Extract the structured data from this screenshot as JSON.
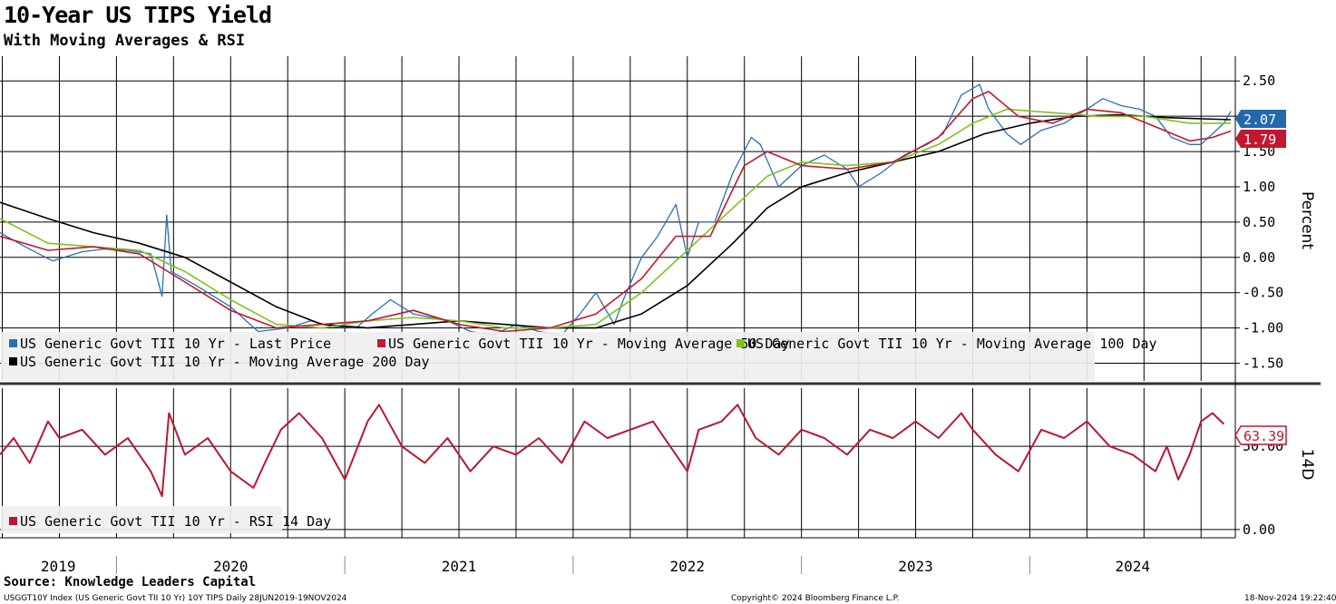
{
  "header": {
    "title": "10-Year US TIPS Yield",
    "subtitle": "With Moving Averages & RSI"
  },
  "footer": {
    "source": "Source: Knowledge Leaders Capital",
    "ticker_info": "USGGT10Y Index (US Generic Govt TII 10 Yr) 10Y TIPS  Daily 28JUN2019-19NOV2024",
    "copyright": "Copyright© 2024 Bloomberg Finance L.P.",
    "timestamp": "18-Nov-2024 19:22:40"
  },
  "colors": {
    "last_price": "#2c6fb4",
    "ma50": "#c0192f",
    "ma100": "#7ec31f",
    "ma200": "#000000",
    "rsi": "#b81830",
    "badge_blue": "#2468b0",
    "badge_red": "#c0192f"
  },
  "chart_data": [
    {
      "type": "line",
      "title": "10-Year US TIPS Yield",
      "subtitle": "With Moving Averages & RSI",
      "ylabel": "Percent",
      "ylim": [
        -1.75,
        2.85
      ],
      "yticks": [
        "2.50",
        "2.00",
        "1.50",
        "1.00",
        "0.50",
        "0.00",
        "-0.50",
        "-1.00",
        "-1.50"
      ],
      "x_tick_labels": [
        "2019",
        "2020",
        "2021",
        "2022",
        "2023",
        "2024"
      ],
      "grid": true,
      "legend_position": "bottom-left",
      "series": [
        {
          "name": "US Generic Govt TII 10 Yr - Last Price",
          "color": "#2c6fb4",
          "last_value_label": "2.07",
          "points": [
            [
              2019.49,
              0.35
            ],
            [
              2019.6,
              0.15
            ],
            [
              2019.72,
              -0.05
            ],
            [
              2019.85,
              0.08
            ],
            [
              2019.95,
              0.12
            ],
            [
              2020.05,
              0.1
            ],
            [
              2020.15,
              0.05
            ],
            [
              2020.2,
              -0.55
            ],
            [
              2020.22,
              0.6
            ],
            [
              2020.24,
              -0.2
            ],
            [
              2020.35,
              -0.4
            ],
            [
              2020.5,
              -0.7
            ],
            [
              2020.62,
              -1.05
            ],
            [
              2020.75,
              -1.0
            ],
            [
              2020.85,
              -0.9
            ],
            [
              2020.95,
              -0.98
            ],
            [
              2021.05,
              -1.0
            ],
            [
              2021.12,
              -0.8
            ],
            [
              2021.2,
              -0.6
            ],
            [
              2021.3,
              -0.8
            ],
            [
              2021.45,
              -0.9
            ],
            [
              2021.55,
              -1.05
            ],
            [
              2021.65,
              -1.1
            ],
            [
              2021.75,
              -0.95
            ],
            [
              2021.85,
              -1.05
            ],
            [
              2021.95,
              -1.1
            ],
            [
              2022.03,
              -0.8
            ],
            [
              2022.1,
              -0.5
            ],
            [
              2022.18,
              -0.95
            ],
            [
              2022.22,
              -0.6
            ],
            [
              2022.3,
              0.0
            ],
            [
              2022.37,
              0.3
            ],
            [
              2022.45,
              0.75
            ],
            [
              2022.5,
              0.0
            ],
            [
              2022.55,
              0.5
            ],
            [
              2022.62,
              0.5
            ],
            [
              2022.7,
              1.2
            ],
            [
              2022.78,
              1.7
            ],
            [
              2022.82,
              1.6
            ],
            [
              2022.9,
              1.0
            ],
            [
              2023.0,
              1.3
            ],
            [
              2023.1,
              1.45
            ],
            [
              2023.2,
              1.25
            ],
            [
              2023.25,
              1.0
            ],
            [
              2023.35,
              1.2
            ],
            [
              2023.45,
              1.45
            ],
            [
              2023.55,
              1.6
            ],
            [
              2023.62,
              1.75
            ],
            [
              2023.7,
              2.3
            ],
            [
              2023.78,
              2.45
            ],
            [
              2023.82,
              2.1
            ],
            [
              2023.9,
              1.75
            ],
            [
              2023.96,
              1.6
            ],
            [
              2024.05,
              1.8
            ],
            [
              2024.15,
              1.9
            ],
            [
              2024.25,
              2.1
            ],
            [
              2024.32,
              2.25
            ],
            [
              2024.4,
              2.15
            ],
            [
              2024.48,
              2.1
            ],
            [
              2024.55,
              2.0
            ],
            [
              2024.62,
              1.7
            ],
            [
              2024.7,
              1.6
            ],
            [
              2024.75,
              1.6
            ],
            [
              2024.8,
              1.75
            ],
            [
              2024.85,
              1.9
            ],
            [
              2024.88,
              2.07
            ]
          ]
        },
        {
          "name": "US Generic Govt TII 10 Yr - Moving Average 50 Day",
          "color": "#c0192f",
          "last_value_label": "1.79",
          "points": [
            [
              2019.49,
              0.3
            ],
            [
              2019.7,
              0.1
            ],
            [
              2019.9,
              0.15
            ],
            [
              2020.1,
              0.05
            ],
            [
              2020.3,
              -0.35
            ],
            [
              2020.5,
              -0.75
            ],
            [
              2020.7,
              -1.0
            ],
            [
              2020.9,
              -0.95
            ],
            [
              2021.1,
              -0.9
            ],
            [
              2021.3,
              -0.75
            ],
            [
              2021.5,
              -0.95
            ],
            [
              2021.7,
              -1.05
            ],
            [
              2021.9,
              -1.0
            ],
            [
              2022.1,
              -0.8
            ],
            [
              2022.3,
              -0.3
            ],
            [
              2022.45,
              0.3
            ],
            [
              2022.6,
              0.3
            ],
            [
              2022.75,
              1.3
            ],
            [
              2022.85,
              1.5
            ],
            [
              2023.0,
              1.3
            ],
            [
              2023.2,
              1.25
            ],
            [
              2023.4,
              1.35
            ],
            [
              2023.6,
              1.7
            ],
            [
              2023.75,
              2.25
            ],
            [
              2023.82,
              2.35
            ],
            [
              2023.95,
              2.0
            ],
            [
              2024.1,
              1.9
            ],
            [
              2024.25,
              2.1
            ],
            [
              2024.4,
              2.05
            ],
            [
              2024.55,
              1.85
            ],
            [
              2024.7,
              1.65
            ],
            [
              2024.8,
              1.7
            ],
            [
              2024.88,
              1.79
            ]
          ]
        },
        {
          "name": "US Generic Govt TII 10 Yr - Moving Average 100 Day",
          "color": "#7ec31f",
          "points": [
            [
              2019.49,
              0.55
            ],
            [
              2019.7,
              0.2
            ],
            [
              2019.9,
              0.15
            ],
            [
              2020.1,
              0.1
            ],
            [
              2020.3,
              -0.2
            ],
            [
              2020.5,
              -0.6
            ],
            [
              2020.7,
              -0.95
            ],
            [
              2020.9,
              -1.0
            ],
            [
              2021.1,
              -0.9
            ],
            [
              2021.3,
              -0.85
            ],
            [
              2021.5,
              -0.9
            ],
            [
              2021.7,
              -1.0
            ],
            [
              2021.9,
              -1.0
            ],
            [
              2022.1,
              -0.95
            ],
            [
              2022.3,
              -0.5
            ],
            [
              2022.5,
              0.1
            ],
            [
              2022.7,
              0.7
            ],
            [
              2022.85,
              1.15
            ],
            [
              2023.0,
              1.35
            ],
            [
              2023.2,
              1.3
            ],
            [
              2023.4,
              1.35
            ],
            [
              2023.6,
              1.6
            ],
            [
              2023.75,
              1.9
            ],
            [
              2023.9,
              2.1
            ],
            [
              2024.1,
              2.05
            ],
            [
              2024.3,
              2.0
            ],
            [
              2024.5,
              2.0
            ],
            [
              2024.7,
              1.9
            ],
            [
              2024.88,
              1.9
            ]
          ]
        },
        {
          "name": "US Generic Govt TII 10 Yr - Moving Average 200 Day",
          "color": "#000000",
          "points": [
            [
              2019.49,
              0.78
            ],
            [
              2019.7,
              0.55
            ],
            [
              2019.9,
              0.35
            ],
            [
              2020.1,
              0.2
            ],
            [
              2020.3,
              0.0
            ],
            [
              2020.5,
              -0.35
            ],
            [
              2020.7,
              -0.7
            ],
            [
              2020.9,
              -0.95
            ],
            [
              2021.1,
              -1.0
            ],
            [
              2021.3,
              -0.95
            ],
            [
              2021.5,
              -0.9
            ],
            [
              2021.7,
              -0.95
            ],
            [
              2021.9,
              -1.0
            ],
            [
              2022.1,
              -1.0
            ],
            [
              2022.3,
              -0.8
            ],
            [
              2022.5,
              -0.4
            ],
            [
              2022.7,
              0.2
            ],
            [
              2022.85,
              0.7
            ],
            [
              2023.0,
              1.0
            ],
            [
              2023.2,
              1.2
            ],
            [
              2023.4,
              1.35
            ],
            [
              2023.6,
              1.5
            ],
            [
              2023.8,
              1.75
            ],
            [
              2024.0,
              1.9
            ],
            [
              2024.2,
              2.0
            ],
            [
              2024.4,
              2.02
            ],
            [
              2024.6,
              1.98
            ],
            [
              2024.88,
              1.95
            ]
          ]
        }
      ]
    },
    {
      "type": "line",
      "ylabel": "14D",
      "ylim": [
        -5,
        85
      ],
      "yticks": [
        "50.00",
        "0.00"
      ],
      "x_tick_labels": [
        "2019",
        "2020",
        "2021",
        "2022",
        "2023",
        "2024"
      ],
      "grid": true,
      "legend_position": "bottom-left",
      "series": [
        {
          "name": "US Generic Govt TII 10 Yr - RSI 14 Day",
          "color": "#b81830",
          "last_value_label": "63.39",
          "points": [
            [
              2019.49,
              45
            ],
            [
              2019.55,
              55
            ],
            [
              2019.62,
              40
            ],
            [
              2019.7,
              65
            ],
            [
              2019.75,
              55
            ],
            [
              2019.85,
              60
            ],
            [
              2019.95,
              45
            ],
            [
              2020.05,
              55
            ],
            [
              2020.15,
              35
            ],
            [
              2020.2,
              20
            ],
            [
              2020.23,
              70
            ],
            [
              2020.3,
              45
            ],
            [
              2020.4,
              55
            ],
            [
              2020.5,
              35
            ],
            [
              2020.6,
              25
            ],
            [
              2020.65,
              40
            ],
            [
              2020.72,
              60
            ],
            [
              2020.8,
              70
            ],
            [
              2020.9,
              55
            ],
            [
              2021.0,
              30
            ],
            [
              2021.1,
              65
            ],
            [
              2021.15,
              75
            ],
            [
              2021.25,
              50
            ],
            [
              2021.35,
              40
            ],
            [
              2021.45,
              55
            ],
            [
              2021.55,
              35
            ],
            [
              2021.65,
              50
            ],
            [
              2021.75,
              45
            ],
            [
              2021.85,
              55
            ],
            [
              2021.95,
              40
            ],
            [
              2022.05,
              65
            ],
            [
              2022.15,
              55
            ],
            [
              2022.25,
              60
            ],
            [
              2022.35,
              65
            ],
            [
              2022.45,
              45
            ],
            [
              2022.5,
              35
            ],
            [
              2022.55,
              60
            ],
            [
              2022.65,
              65
            ],
            [
              2022.72,
              75
            ],
            [
              2022.8,
              55
            ],
            [
              2022.9,
              45
            ],
            [
              2023.0,
              60
            ],
            [
              2023.1,
              55
            ],
            [
              2023.2,
              45
            ],
            [
              2023.3,
              60
            ],
            [
              2023.4,
              55
            ],
            [
              2023.5,
              65
            ],
            [
              2023.6,
              55
            ],
            [
              2023.7,
              70
            ],
            [
              2023.75,
              60
            ],
            [
              2023.85,
              45
            ],
            [
              2023.95,
              35
            ],
            [
              2024.05,
              60
            ],
            [
              2024.15,
              55
            ],
            [
              2024.25,
              65
            ],
            [
              2024.35,
              50
            ],
            [
              2024.45,
              45
            ],
            [
              2024.55,
              35
            ],
            [
              2024.6,
              50
            ],
            [
              2024.65,
              30
            ],
            [
              2024.7,
              45
            ],
            [
              2024.75,
              65
            ],
            [
              2024.8,
              70
            ],
            [
              2024.85,
              63.39
            ]
          ]
        }
      ]
    }
  ]
}
